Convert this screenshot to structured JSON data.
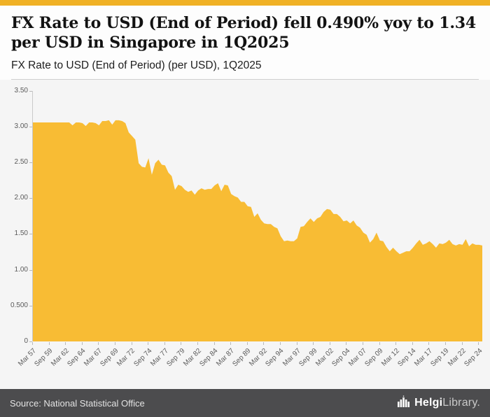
{
  "colors": {
    "accent_bar": "#F0B125",
    "area_fill": "#F8BC34",
    "footer_bg": "#4C4C4E"
  },
  "header": {
    "title": "FX Rate to USD (End of Period) fell 0.490% yoy to 1.34 per USD in Singapore in 1Q2025",
    "subtitle": "FX Rate to USD (End of Period) (per USD), 1Q2025"
  },
  "footer": {
    "source": "Source: National Statistical Office",
    "logo_bold": "Helgi",
    "logo_light": "Library."
  },
  "chart_data": {
    "type": "area",
    "title": "FX Rate to USD (End of Period) (per USD), 1Q2025",
    "series_name": "FX Rate to USD (End of Period), Singapore",
    "x_start": 1957.25,
    "x_step": 0.5,
    "x_unit": "year (Mar = .25, Sep = .75)",
    "values": [
      3.06,
      3.06,
      3.06,
      3.06,
      3.06,
      3.06,
      3.06,
      3.06,
      3.06,
      3.06,
      3.06,
      3.06,
      3.02,
      3.06,
      3.06,
      3.05,
      3.01,
      3.06,
      3.06,
      3.05,
      3.02,
      3.08,
      3.08,
      3.09,
      3.03,
      3.09,
      3.09,
      3.08,
      3.05,
      2.92,
      2.87,
      2.82,
      2.49,
      2.44,
      2.43,
      2.56,
      2.33,
      2.49,
      2.54,
      2.47,
      2.46,
      2.36,
      2.31,
      2.12,
      2.19,
      2.17,
      2.12,
      2.09,
      2.11,
      2.05,
      2.11,
      2.14,
      2.12,
      2.13,
      2.13,
      2.18,
      2.21,
      2.1,
      2.19,
      2.18,
      2.06,
      2.03,
      2.01,
      1.95,
      1.95,
      1.89,
      1.88,
      1.74,
      1.79,
      1.7,
      1.65,
      1.64,
      1.64,
      1.6,
      1.58,
      1.47,
      1.4,
      1.41,
      1.4,
      1.4,
      1.44,
      1.6,
      1.61,
      1.67,
      1.72,
      1.67,
      1.72,
      1.74,
      1.81,
      1.85,
      1.84,
      1.78,
      1.78,
      1.74,
      1.68,
      1.69,
      1.65,
      1.69,
      1.62,
      1.59,
      1.52,
      1.49,
      1.38,
      1.43,
      1.52,
      1.41,
      1.4,
      1.32,
      1.26,
      1.31,
      1.26,
      1.22,
      1.24,
      1.26,
      1.26,
      1.31,
      1.37,
      1.42,
      1.35,
      1.37,
      1.4,
      1.36,
      1.31,
      1.37,
      1.36,
      1.38,
      1.42,
      1.36,
      1.34,
      1.36,
      1.35,
      1.43,
      1.33,
      1.37,
      1.35,
      1.35,
      1.34
    ],
    "end_value": 1.34,
    "yoy_change_pct": -0.49,
    "ylim": [
      0,
      3.5
    ],
    "yticks": [
      0,
      0.5,
      1.0,
      1.5,
      2.0,
      2.5,
      3.0,
      3.5
    ],
    "ytick_labels": [
      "0",
      "0.500",
      "1.00",
      "1.50",
      "2.00",
      "2.50",
      "3.00",
      "3.50"
    ],
    "xticks": [
      1957.25,
      1959.75,
      1962.25,
      1964.75,
      1967.25,
      1969.75,
      1972.25,
      1974.75,
      1977.25,
      1979.75,
      1982.25,
      1984.75,
      1987.25,
      1989.75,
      1992.25,
      1994.75,
      1997.25,
      1999.75,
      2002.25,
      2004.75,
      2007.25,
      2009.75,
      2012.25,
      2014.75,
      2017.25,
      2019.75,
      2022.25,
      2024.75
    ],
    "xtick_labels": [
      "Mar 57",
      "Sep 59",
      "Mar 62",
      "Sep 64",
      "Mar 67",
      "Sep 69",
      "Mar 72",
      "Sep 74",
      "Mar 77",
      "Sep 79",
      "Mar 82",
      "Sep 84",
      "Mar 87",
      "Sep 89",
      "Mar 92",
      "Sep 94",
      "Mar 97",
      "Sep 99",
      "Mar 02",
      "Sep 04",
      "Mar 07",
      "Sep 09",
      "Mar 12",
      "Sep 14",
      "Mar 17",
      "Sep 19",
      "Mar 22",
      "Sep 24"
    ],
    "fill_color": "#F8BC34",
    "grid": false,
    "legend": false
  }
}
